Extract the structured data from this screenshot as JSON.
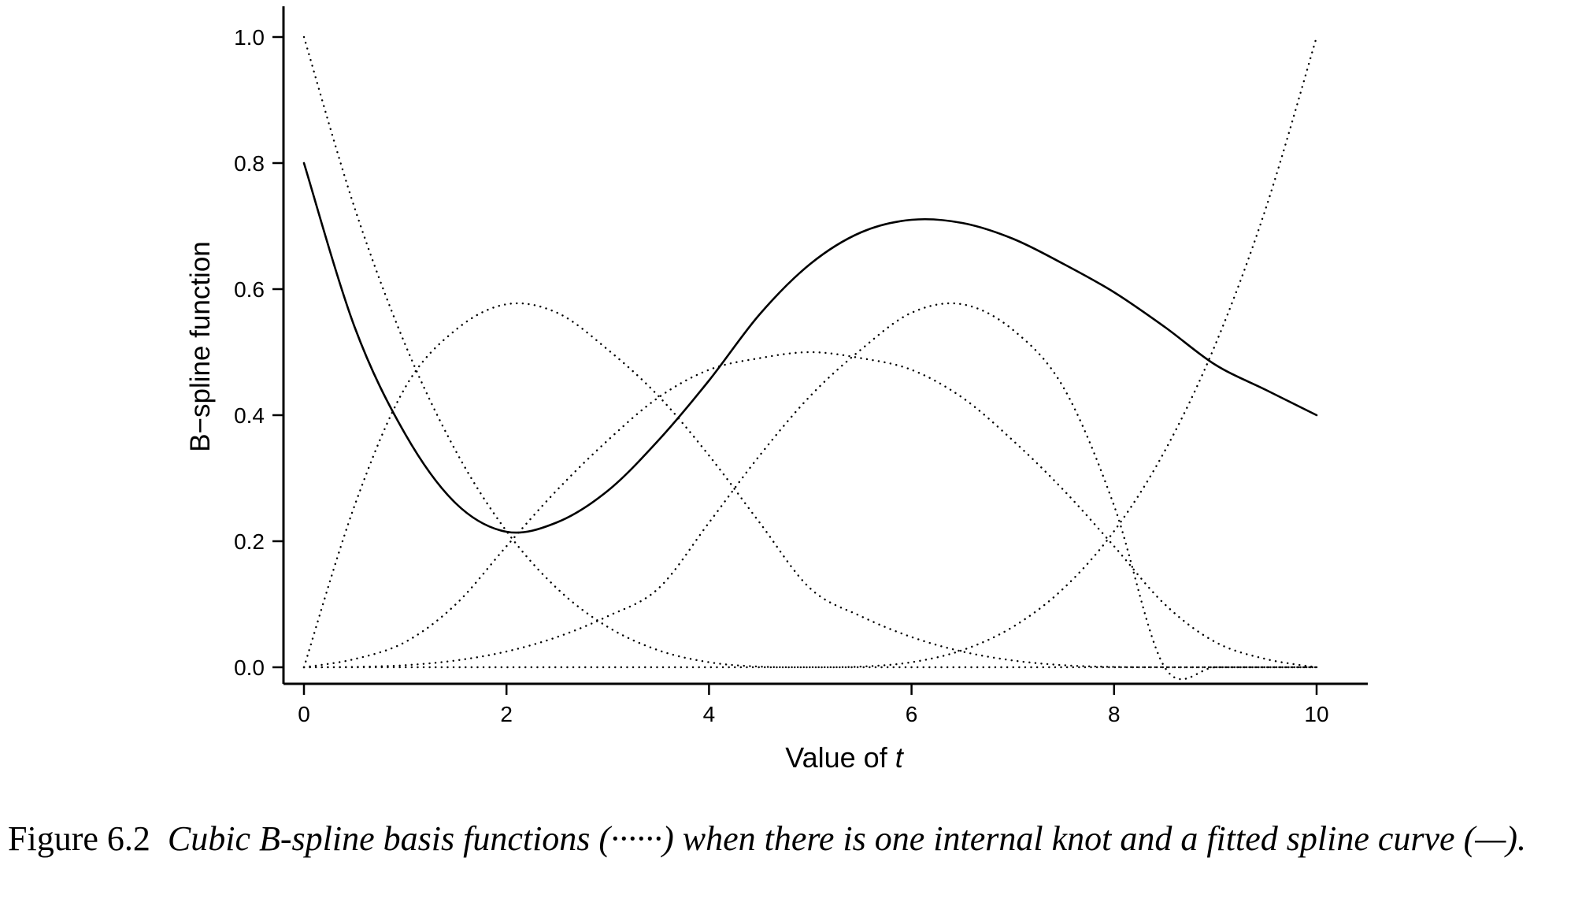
{
  "chart_data": {
    "type": "line",
    "xlabel": "Value of",
    "xlabel_var": "t",
    "ylabel": "B−spline function",
    "xlim": [
      0,
      10
    ],
    "ylim": [
      0,
      1.0
    ],
    "x_ticks": [
      0,
      2,
      4,
      6,
      8,
      10
    ],
    "x_tick_labels": [
      "0",
      "2",
      "4",
      "6",
      "8",
      "10"
    ],
    "y_ticks": [
      0,
      0.2,
      0.4,
      0.6,
      0.8,
      1.0
    ],
    "y_tick_labels": [
      "0.0",
      "0.2",
      "0.4",
      "0.6",
      "0.8",
      "1.0"
    ],
    "internal_knot": 5,
    "x": [
      0,
      0.5,
      1,
      1.5,
      2,
      2.5,
      3,
      3.5,
      4,
      4.5,
      5,
      5.5,
      6,
      6.5,
      7,
      7.5,
      8,
      8.5,
      9,
      9.5,
      10
    ],
    "series": [
      {
        "style": "dotted",
        "values": [
          1.0,
          0.729,
          0.512,
          0.343,
          0.216,
          0.125,
          0.064,
          0.027,
          0.008,
          0.001,
          0.0,
          0.0,
          0.0,
          0.0,
          0.0,
          0.0,
          0.0,
          0.0,
          0.0,
          0.0,
          0.0
        ]
      },
      {
        "style": "dotted",
        "values": [
          0.0,
          0.2565,
          0.444,
          0.5355,
          0.576,
          0.5625,
          0.504,
          0.4305,
          0.336,
          0.2295,
          0.125,
          0.081,
          0.048,
          0.025,
          0.0108,
          0.0033,
          0.0005,
          0.0,
          0.0,
          0.0,
          0.0
        ]
      },
      {
        "style": "dotted",
        "values": [
          0.0,
          0.013,
          0.04,
          0.1,
          0.192,
          0.2813,
          0.36,
          0.428,
          0.472,
          0.4905,
          0.5,
          0.4905,
          0.472,
          0.428,
          0.36,
          0.2813,
          0.192,
          0.1,
          0.04,
          0.013,
          0.0
        ]
      },
      {
        "style": "dotted",
        "values": [
          0.0,
          0.0,
          0.0,
          0.0,
          0.0,
          0.0,
          0.0,
          0.0,
          0.0,
          0.0,
          0.0,
          0.001,
          0.008,
          0.027,
          0.064,
          0.125,
          0.216,
          0.343,
          0.512,
          0.729,
          1.0
        ]
      },
      {
        "style": "dotted",
        "values": [
          0.0,
          0.0005,
          0.0033,
          0.0108,
          0.025,
          0.048,
          0.081,
          0.125,
          0.2295,
          0.336,
          0.4305,
          0.504,
          0.5625,
          0.576,
          0.5355,
          0.444,
          0.2565,
          0.0,
          0.0,
          0.0,
          0.0
        ]
      },
      {
        "style": "solid",
        "values": [
          0.8,
          0.54,
          0.37,
          0.26,
          0.215,
          0.23,
          0.28,
          0.36,
          0.455,
          0.56,
          0.64,
          0.69,
          0.71,
          0.705,
          0.68,
          0.64,
          0.595,
          0.54,
          0.48,
          0.44,
          0.4
        ]
      }
    ]
  },
  "caption": {
    "figure_number": "Figure 6.2",
    "text": "Cubic B-spline basis functions (······) when there is one internal knot and a fitted spline curve (—)."
  }
}
